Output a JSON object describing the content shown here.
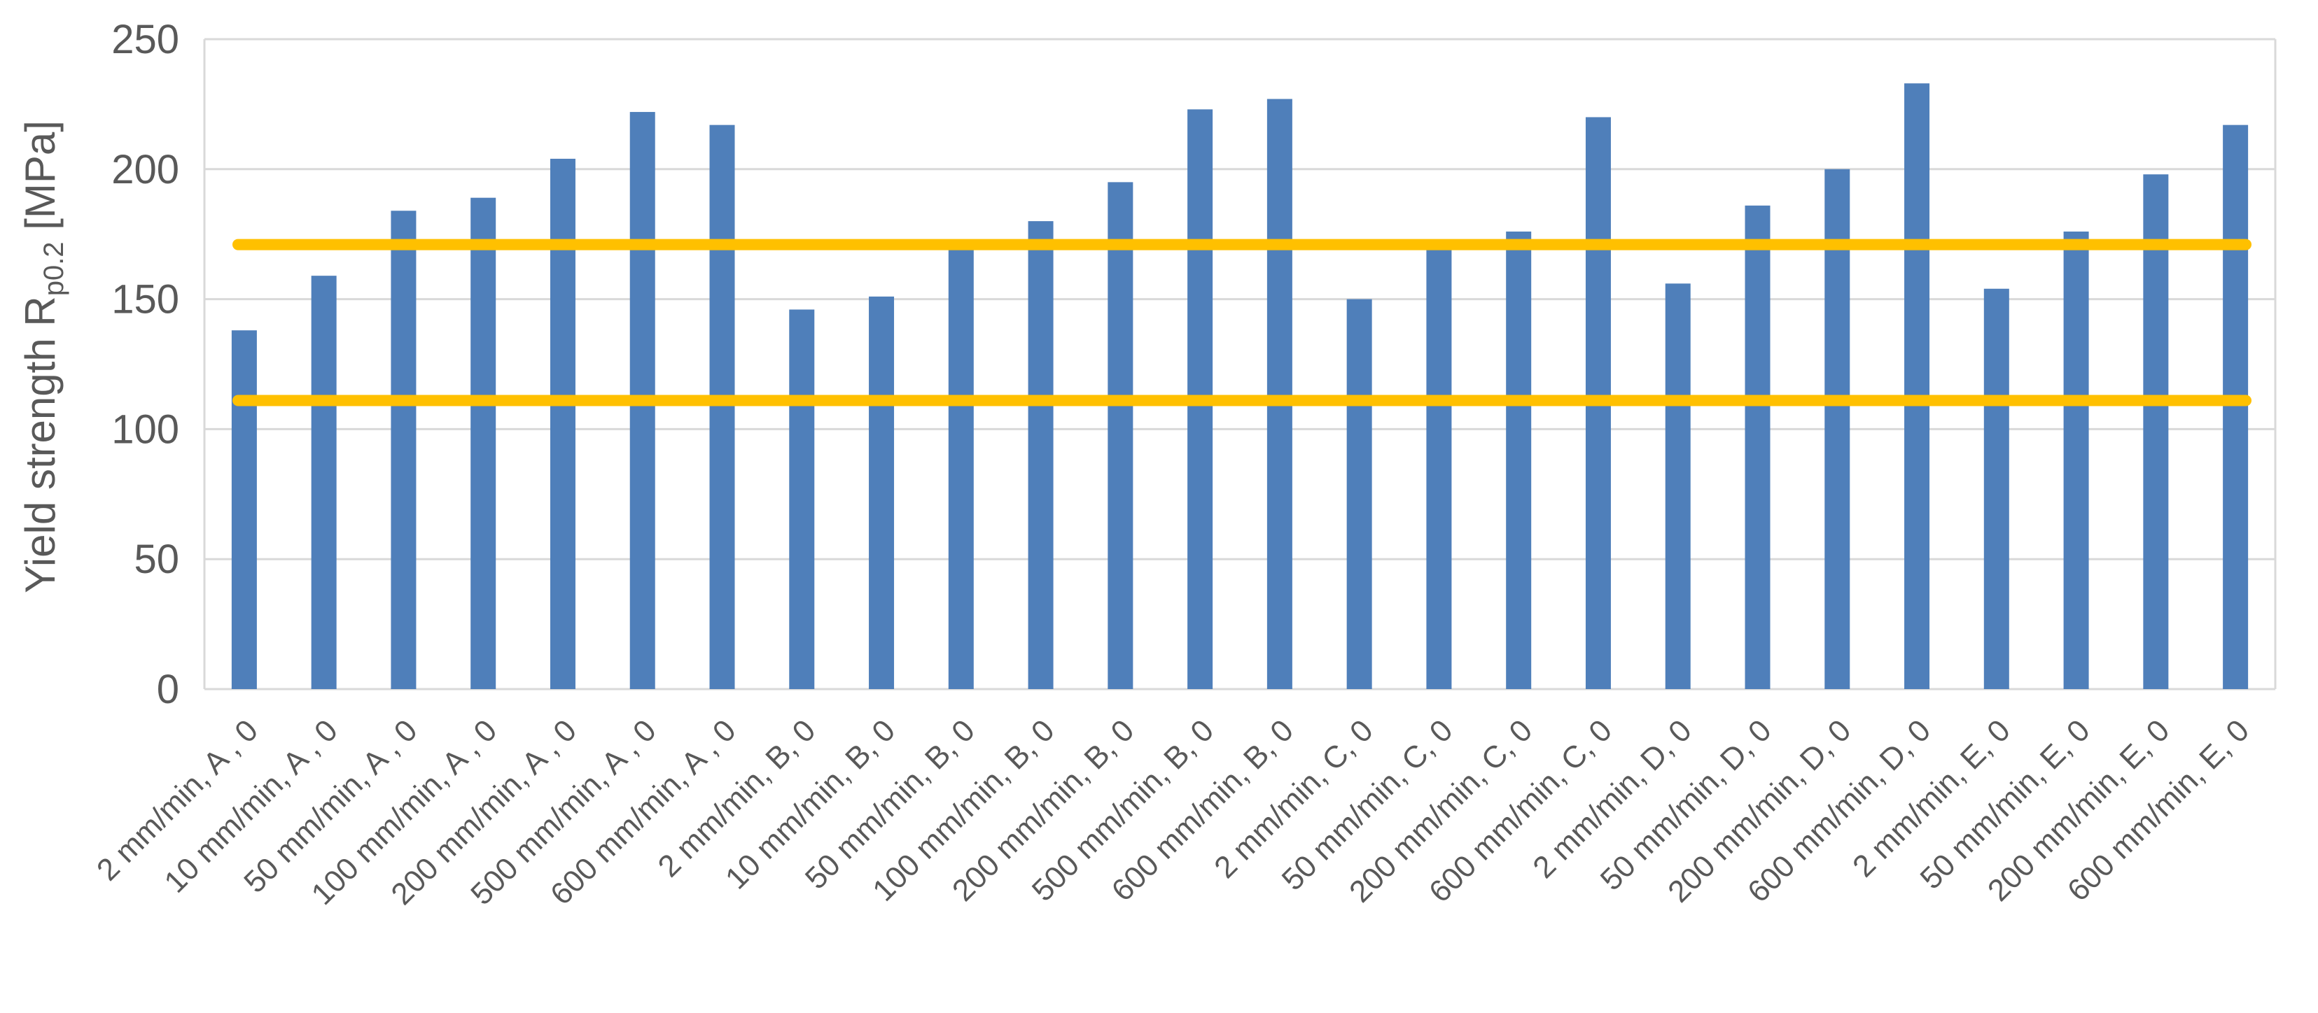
{
  "chart_data": {
    "type": "bar",
    "title": "",
    "xlabel": "",
    "ylabel": {
      "main": "Yield strength R",
      "subscript": "p0.2",
      "unit": " [MPa]"
    },
    "ylim": [
      0,
      250
    ],
    "yticks": [
      0,
      50,
      100,
      150,
      200,
      250
    ],
    "grid": true,
    "legend": "none",
    "categories": [
      "2 mm/min,  A , 0",
      "10 mm/min,  A , 0",
      "50 mm/min, A , 0",
      "100 mm/min, A , 0",
      "200 mm/min, A , 0",
      "500 mm/min, A , 0",
      "600 mm/min, A , 0",
      "2 mm/min, B, 0",
      "10 mm/min, B, 0",
      "50 mm/min, B, 0",
      "100 mm/min, B, 0",
      "200 mm/min, B, 0",
      "500 mm/min, B, 0",
      "600 mm/min, B, 0",
      "2 mm/min, C, 0",
      "50 mm/min, C, 0",
      "200 mm/min, C, 0",
      "600 mm/min, C, 0",
      "2 mm/min, D, 0",
      "50 mm/min, D, 0",
      "200 mm/min, D, 0",
      "600 mm/min, D, 0",
      "2 mm/min, E, 0",
      "50 mm/min, E, 0",
      "200 mm/min, E, 0",
      "600 mm/min, E, 0"
    ],
    "series": [
      {
        "values": [
          138,
          159,
          184,
          189,
          204,
          222,
          217,
          146,
          151,
          170,
          180,
          195,
          223,
          227,
          150,
          170,
          176,
          220,
          156,
          186,
          200,
          233,
          154,
          176,
          198,
          217
        ]
      }
    ],
    "reference_lines": [
      {
        "y": 171
      },
      {
        "y": 111
      }
    ],
    "colors": {
      "bar": "#4f7fba",
      "reference_line": "#ffc000",
      "grid": "#d9d9d9",
      "text": "#595959"
    }
  }
}
